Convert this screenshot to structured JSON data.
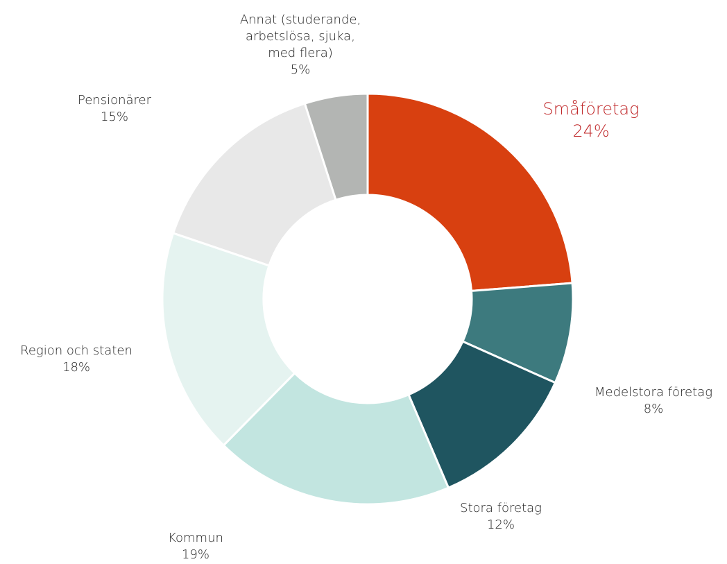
{
  "chart_data": {
    "type": "donut",
    "categories": [
      "Småföretag",
      "Medelstora företag",
      "Stora företag",
      "Kommun",
      "Region och staten",
      "Pensionärer",
      "Annat (studerande, arbetslösa, sjuka, med flera)"
    ],
    "values": [
      24,
      8,
      12,
      19,
      18,
      15,
      5
    ],
    "value_labels": [
      "24%",
      "8%",
      "12%",
      "19%",
      "18%",
      "15%",
      "5%"
    ],
    "colors": [
      "#d84010",
      "#3d7a7e",
      "#1f5560",
      "#c2e5e0",
      "#e5f3f0",
      "#e8e8e8",
      "#b3b5b3"
    ],
    "label_colors": [
      "#c0282a",
      "#222222",
      "#222222",
      "#222222",
      "#222222",
      "#222222",
      "#222222"
    ]
  }
}
